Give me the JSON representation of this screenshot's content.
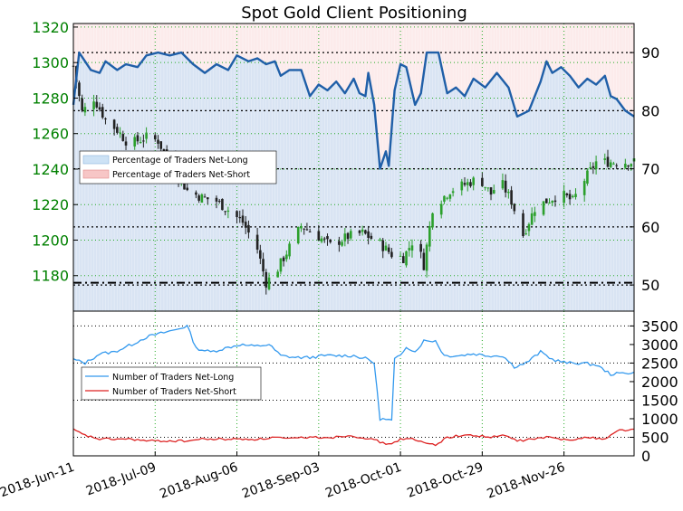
{
  "chart_data": [
    {
      "type": "candlestick+line",
      "title": "Spot Gold Client Positioning",
      "y_left": {
        "ticks": [
          1180,
          1200,
          1220,
          1240,
          1260,
          1280,
          1300,
          1320
        ],
        "range": [
          1160,
          1322
        ],
        "color": "#008000"
      },
      "y_right": {
        "ticks": [
          50,
          60,
          70,
          80,
          90
        ],
        "range": [
          45.5,
          95
        ]
      },
      "hline": 1176,
      "legend": [
        "Percentage of Traders Net-Long",
        "Percentage of Traders Net-Short"
      ],
      "legend_position": "center-left",
      "price_anchors": [
        [
          "2018-06-11",
          1298
        ],
        [
          "2018-06-14",
          1272
        ],
        [
          "2018-06-18",
          1280
        ],
        [
          "2018-06-22",
          1268
        ],
        [
          "2018-06-26",
          1262
        ],
        [
          "2018-06-30",
          1254
        ],
        [
          "2018-07-06",
          1258
        ],
        [
          "2018-07-10",
          1256
        ],
        [
          "2018-07-14",
          1243
        ],
        [
          "2018-07-20",
          1228
        ],
        [
          "2018-07-25",
          1224
        ],
        [
          "2018-07-30",
          1222
        ],
        [
          "2018-08-03",
          1217
        ],
        [
          "2018-08-08",
          1210
        ],
        [
          "2018-08-13",
          1195
        ],
        [
          "2018-08-16",
          1176
        ],
        [
          "2018-08-20",
          1184
        ],
        [
          "2018-08-24",
          1196
        ],
        [
          "2018-08-28",
          1208
        ],
        [
          "2018-09-03",
          1202
        ],
        [
          "2018-09-07",
          1197
        ],
        [
          "2018-09-13",
          1202
        ],
        [
          "2018-09-18",
          1204
        ],
        [
          "2018-09-24",
          1198
        ],
        [
          "2018-09-28",
          1192
        ],
        [
          "2018-10-02",
          1190
        ],
        [
          "2018-10-06",
          1202
        ],
        [
          "2018-10-09",
          1186
        ],
        [
          "2018-10-12",
          1218
        ],
        [
          "2018-10-18",
          1228
        ],
        [
          "2018-10-24",
          1232
        ],
        [
          "2018-10-28",
          1235
        ],
        [
          "2018-11-01",
          1226
        ],
        [
          "2018-11-04",
          1234
        ],
        [
          "2018-11-08",
          1222
        ],
        [
          "2018-11-12",
          1203
        ],
        [
          "2018-11-16",
          1218
        ],
        [
          "2018-11-20",
          1222
        ],
        [
          "2018-11-25",
          1226
        ],
        [
          "2018-11-29",
          1222
        ],
        [
          "2018-12-03",
          1234
        ],
        [
          "2018-12-07",
          1244
        ]
      ],
      "pct_net_long": [
        [
          "2018-06-11",
          81
        ],
        [
          "2018-06-13",
          90
        ],
        [
          "2018-06-17",
          87
        ],
        [
          "2018-06-20",
          86.5
        ],
        [
          "2018-06-22",
          88.5
        ],
        [
          "2018-06-26",
          87
        ],
        [
          "2018-06-29",
          88
        ],
        [
          "2018-07-03",
          87.5
        ],
        [
          "2018-07-06",
          89.5
        ],
        [
          "2018-07-10",
          90
        ],
        [
          "2018-07-14",
          89.5
        ],
        [
          "2018-07-18",
          90
        ],
        [
          "2018-07-22",
          88
        ],
        [
          "2018-07-26",
          86.5
        ],
        [
          "2018-07-30",
          88
        ],
        [
          "2018-08-03",
          87
        ],
        [
          "2018-08-06",
          89.5
        ],
        [
          "2018-08-10",
          88.5
        ],
        [
          "2018-08-13",
          89
        ],
        [
          "2018-08-16",
          88
        ],
        [
          "2018-08-19",
          88.5
        ],
        [
          "2018-08-21",
          86
        ],
        [
          "2018-08-24",
          87
        ],
        [
          "2018-08-28",
          87
        ],
        [
          "2018-08-31",
          82.5
        ],
        [
          "2018-09-03",
          84.5
        ],
        [
          "2018-09-06",
          83.5
        ],
        [
          "2018-09-09",
          85
        ],
        [
          "2018-09-12",
          83
        ],
        [
          "2018-09-15",
          85.5
        ],
        [
          "2018-09-17",
          83
        ],
        [
          "2018-09-19",
          82.5
        ],
        [
          "2018-09-20",
          86.5
        ],
        [
          "2018-09-22",
          81
        ],
        [
          "2018-09-24",
          70
        ],
        [
          "2018-09-26",
          73
        ],
        [
          "2018-09-27",
          70.5
        ],
        [
          "2018-09-29",
          83.5
        ],
        [
          "2018-10-01",
          88
        ],
        [
          "2018-10-03",
          87.5
        ],
        [
          "2018-10-06",
          81
        ],
        [
          "2018-10-08",
          83
        ],
        [
          "2018-10-10",
          90
        ],
        [
          "2018-10-14",
          90
        ],
        [
          "2018-10-17",
          83
        ],
        [
          "2018-10-20",
          84
        ],
        [
          "2018-10-23",
          82.5
        ],
        [
          "2018-10-26",
          85.5
        ],
        [
          "2018-10-30",
          84
        ],
        [
          "2018-11-03",
          86.5
        ],
        [
          "2018-11-07",
          84
        ],
        [
          "2018-11-10",
          79
        ],
        [
          "2018-11-14",
          80
        ],
        [
          "2018-11-18",
          85
        ],
        [
          "2018-11-20",
          88.5
        ],
        [
          "2018-11-22",
          86.5
        ],
        [
          "2018-11-25",
          87.5
        ],
        [
          "2018-11-28",
          86
        ],
        [
          "2018-12-01",
          84
        ],
        [
          "2018-12-04",
          85.5
        ],
        [
          "2018-12-07",
          84.5
        ],
        [
          "2018-12-10",
          86
        ],
        [
          "2018-12-12",
          82.5
        ],
        [
          "2018-12-14",
          82
        ],
        [
          "2018-12-17",
          80
        ],
        [
          "2018-12-20",
          79
        ]
      ]
    },
    {
      "type": "line",
      "series": [
        {
          "name": "Number of Traders Net-Long",
          "color": "#3399ee",
          "points": [
            [
              "2018-06-11",
              2600
            ],
            [
              "2018-06-15",
              2500
            ],
            [
              "2018-06-20",
              2750
            ],
            [
              "2018-06-25",
              2800
            ],
            [
              "2018-07-01",
              3000
            ],
            [
              "2018-07-06",
              3200
            ],
            [
              "2018-07-11",
              3300
            ],
            [
              "2018-07-16",
              3400
            ],
            [
              "2018-07-20",
              3500
            ],
            [
              "2018-07-23",
              2900
            ],
            [
              "2018-07-28",
              2800
            ],
            [
              "2018-08-02",
              2900
            ],
            [
              "2018-08-07",
              3000
            ],
            [
              "2018-08-12",
              2950
            ],
            [
              "2018-08-17",
              3000
            ],
            [
              "2018-08-21",
              2700
            ],
            [
              "2018-08-26",
              2650
            ],
            [
              "2018-08-31",
              2650
            ],
            [
              "2018-09-05",
              2700
            ],
            [
              "2018-09-10",
              2700
            ],
            [
              "2018-09-15",
              2700
            ],
            [
              "2018-09-20",
              2600
            ],
            [
              "2018-09-22",
              2500
            ],
            [
              "2018-09-24",
              1000
            ],
            [
              "2018-09-28",
              950
            ],
            [
              "2018-09-29",
              2600
            ],
            [
              "2018-10-01",
              2700
            ],
            [
              "2018-10-03",
              2950
            ],
            [
              "2018-10-06",
              2800
            ],
            [
              "2018-10-09",
              3100
            ],
            [
              "2018-10-13",
              3100
            ],
            [
              "2018-10-16",
              2700
            ],
            [
              "2018-10-21",
              2700
            ],
            [
              "2018-10-26",
              2750
            ],
            [
              "2018-10-31",
              2700
            ],
            [
              "2018-11-05",
              2700
            ],
            [
              "2018-11-09",
              2400
            ],
            [
              "2018-11-13",
              2500
            ],
            [
              "2018-11-18",
              2800
            ],
            [
              "2018-11-22",
              2600
            ],
            [
              "2018-11-27",
              2500
            ],
            [
              "2018-12-02",
              2500
            ],
            [
              "2018-12-07",
              2450
            ],
            [
              "2018-12-12",
              2200
            ],
            [
              "2018-12-20",
              2250
            ]
          ]
        },
        {
          "name": "Number of Traders Net-Short",
          "color": "#dd2222",
          "points": [
            [
              "2018-06-11",
              700
            ],
            [
              "2018-06-15",
              550
            ],
            [
              "2018-06-20",
              450
            ],
            [
              "2018-06-25",
              450
            ],
            [
              "2018-07-01",
              450
            ],
            [
              "2018-07-06",
              400
            ],
            [
              "2018-07-11",
              400
            ],
            [
              "2018-07-16",
              400
            ],
            [
              "2018-07-20",
              400
            ],
            [
              "2018-07-25",
              450
            ],
            [
              "2018-07-30",
              450
            ],
            [
              "2018-08-04",
              450
            ],
            [
              "2018-08-09",
              450
            ],
            [
              "2018-08-14",
              450
            ],
            [
              "2018-08-19",
              500
            ],
            [
              "2018-08-24",
              450
            ],
            [
              "2018-08-29",
              500
            ],
            [
              "2018-09-03",
              500
            ],
            [
              "2018-09-08",
              500
            ],
            [
              "2018-09-13",
              550
            ],
            [
              "2018-09-18",
              500
            ],
            [
              "2018-09-23",
              400
            ],
            [
              "2018-09-27",
              300
            ],
            [
              "2018-10-01",
              450
            ],
            [
              "2018-10-05",
              450
            ],
            [
              "2018-10-09",
              350
            ],
            [
              "2018-10-13",
              300
            ],
            [
              "2018-10-17",
              500
            ],
            [
              "2018-10-22",
              550
            ],
            [
              "2018-10-27",
              550
            ],
            [
              "2018-11-01",
              500
            ],
            [
              "2018-11-06",
              550
            ],
            [
              "2018-11-10",
              400
            ],
            [
              "2018-11-15",
              450
            ],
            [
              "2018-11-20",
              500
            ],
            [
              "2018-11-25",
              450
            ],
            [
              "2018-11-30",
              450
            ],
            [
              "2018-12-05",
              500
            ],
            [
              "2018-12-10",
              450
            ],
            [
              "2018-12-15",
              700
            ],
            [
              "2018-12-20",
              700
            ]
          ]
        }
      ],
      "y_ticks": [
        0,
        500,
        1000,
        1500,
        2000,
        2500,
        3000,
        3500
      ],
      "ylim": [
        0,
        3900
      ],
      "legend_position": "center-left"
    }
  ],
  "x_axis": {
    "start": "2018-06-11",
    "end": "2018-12-20",
    "tick_labels": [
      "2018-Jun-11",
      "2018-Jul-09",
      "2018-Aug-06",
      "2018-Sep-03",
      "2018-Oct-01",
      "2018-Oct-29",
      "2018-Nov-26"
    ],
    "tick_dates": [
      "2018-06-11",
      "2018-07-09",
      "2018-08-06",
      "2018-09-03",
      "2018-10-01",
      "2018-10-29",
      "2018-11-26"
    ]
  },
  "colors": {
    "up_candle": "#2ca02c",
    "down_candle": "#222222",
    "net_long_line": "#1f5fa8",
    "net_long_fill": "#cde2f5",
    "net_short_fill": "#f7c6c6",
    "grid_green": "#22aa22",
    "grid_black": "#000000"
  }
}
